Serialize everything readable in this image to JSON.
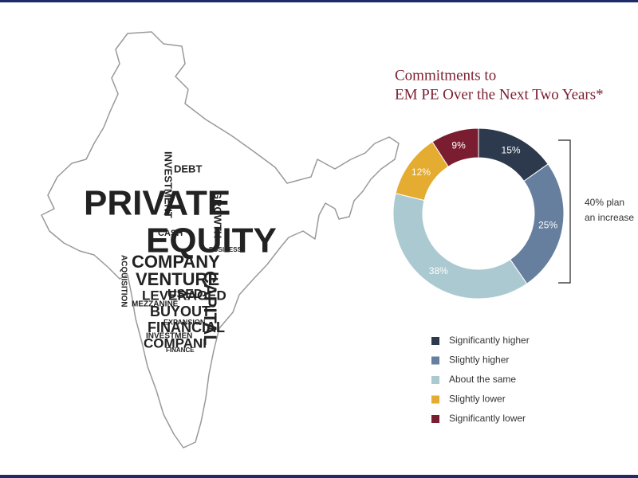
{
  "chart_data": {
    "type": "pie",
    "donut": true,
    "title": [
      "Commitments to",
      "EM PE Over the Next Two Years*"
    ],
    "categories": [
      "Significantly higher",
      "Slightly higher",
      "About the same",
      "Slightly lower",
      "Significantly lower"
    ],
    "values": [
      15,
      25,
      38,
      12,
      9
    ],
    "value_labels": [
      "15%",
      "25%",
      "38%",
      "12%",
      "9%"
    ],
    "colors": [
      "#2d3a4e",
      "#667f9e",
      "#abc9d0",
      "#e4ac30",
      "#7b1d30"
    ],
    "annotation": [
      "40% plan",
      "an increase"
    ],
    "legend": "bottom"
  },
  "word_cloud": {
    "words": [
      "PRIVATE",
      "EQUITY",
      "COMPANY",
      "VENTURE",
      "CAPITAL",
      "LEVERAGED",
      "BUYOUT",
      "FINANCIAL",
      "COMPANI",
      "INVESTMENT",
      "DEBT",
      "GROWTH",
      "CASH",
      "MEZZANINE",
      "USED",
      "ACQUISITION",
      "INVESTMEN",
      "BUSINESS",
      "EXPANSION",
      "FINANCE"
    ]
  }
}
